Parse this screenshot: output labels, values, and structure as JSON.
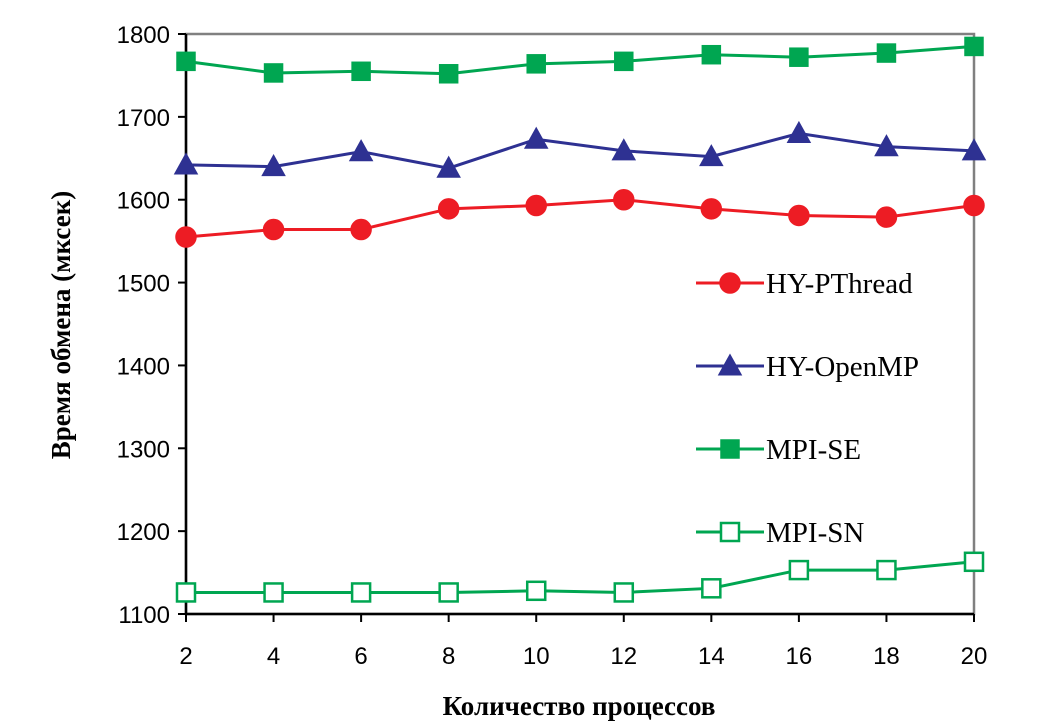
{
  "chart_data": {
    "type": "line",
    "title": "",
    "xlabel": "Количество процессов",
    "ylabel": "Время обмена (мксек)",
    "x": [
      2,
      4,
      6,
      8,
      10,
      12,
      14,
      16,
      18,
      20
    ],
    "xticks": [
      "2",
      "4",
      "6",
      "8",
      "10",
      "12",
      "14",
      "16",
      "18",
      "20"
    ],
    "yticks": [
      "1100",
      "1200",
      "1300",
      "1400",
      "1500",
      "1600",
      "1700",
      "1800"
    ],
    "xlim": [
      2,
      20
    ],
    "ylim": [
      1100,
      1800
    ],
    "grid": false,
    "legend_position": "center-right",
    "series": [
      {
        "name": "HY-PThread",
        "color": "#ed1c24",
        "marker": "circle",
        "filled": true,
        "values": [
          1555,
          1564,
          1564,
          1589,
          1593,
          1600,
          1589,
          1581,
          1579,
          1593
        ]
      },
      {
        "name": "HY-OpenMP",
        "color": "#2e3192",
        "marker": "triangle",
        "filled": true,
        "values": [
          1642,
          1640,
          1658,
          1638,
          1673,
          1659,
          1652,
          1680,
          1664,
          1659
        ]
      },
      {
        "name": "MPI-SE",
        "color": "#00a651",
        "marker": "square",
        "filled": true,
        "values": [
          1767,
          1753,
          1755,
          1752,
          1764,
          1767,
          1775,
          1772,
          1777,
          1785
        ]
      },
      {
        "name": "MPI-SN",
        "color": "#00a651",
        "marker": "square",
        "filled": false,
        "values": [
          1126,
          1126,
          1126,
          1126,
          1128,
          1126,
          1131,
          1153,
          1153,
          1163
        ]
      }
    ]
  }
}
